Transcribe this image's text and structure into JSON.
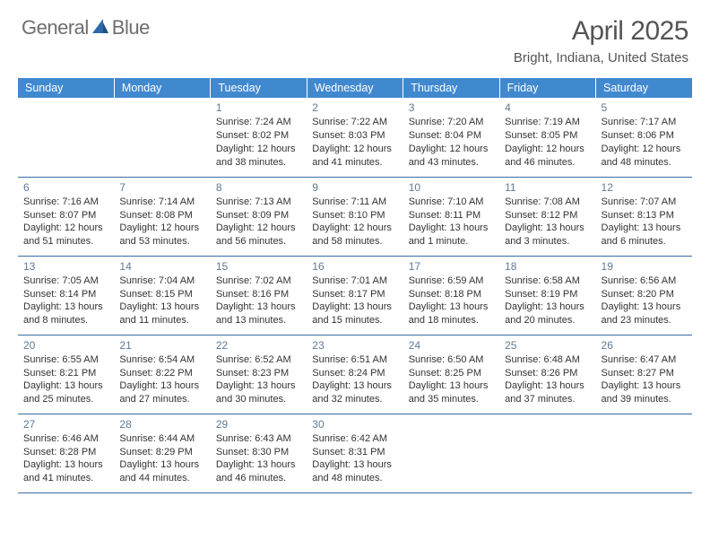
{
  "logo": {
    "text_general": "General",
    "text_blue": "Blue"
  },
  "month_title": "April 2025",
  "location": "Bright, Indiana, United States",
  "colors": {
    "header_bg": "#4189cf",
    "header_text": "#ffffff",
    "row_border": "#3a6da3",
    "daynum": "#5f7a94",
    "body_text": "#333333",
    "logo_gray": "#6e6e6e",
    "logo_blue": "#3b7fc4",
    "background": "#ffffff"
  },
  "day_headers": [
    "Sunday",
    "Monday",
    "Tuesday",
    "Wednesday",
    "Thursday",
    "Friday",
    "Saturday"
  ],
  "weeks": [
    [
      null,
      null,
      {
        "n": "1",
        "sunrise": "Sunrise: 7:24 AM",
        "sunset": "Sunset: 8:02 PM",
        "daylight": "Daylight: 12 hours and 38 minutes."
      },
      {
        "n": "2",
        "sunrise": "Sunrise: 7:22 AM",
        "sunset": "Sunset: 8:03 PM",
        "daylight": "Daylight: 12 hours and 41 minutes."
      },
      {
        "n": "3",
        "sunrise": "Sunrise: 7:20 AM",
        "sunset": "Sunset: 8:04 PM",
        "daylight": "Daylight: 12 hours and 43 minutes."
      },
      {
        "n": "4",
        "sunrise": "Sunrise: 7:19 AM",
        "sunset": "Sunset: 8:05 PM",
        "daylight": "Daylight: 12 hours and 46 minutes."
      },
      {
        "n": "5",
        "sunrise": "Sunrise: 7:17 AM",
        "sunset": "Sunset: 8:06 PM",
        "daylight": "Daylight: 12 hours and 48 minutes."
      }
    ],
    [
      {
        "n": "6",
        "sunrise": "Sunrise: 7:16 AM",
        "sunset": "Sunset: 8:07 PM",
        "daylight": "Daylight: 12 hours and 51 minutes."
      },
      {
        "n": "7",
        "sunrise": "Sunrise: 7:14 AM",
        "sunset": "Sunset: 8:08 PM",
        "daylight": "Daylight: 12 hours and 53 minutes."
      },
      {
        "n": "8",
        "sunrise": "Sunrise: 7:13 AM",
        "sunset": "Sunset: 8:09 PM",
        "daylight": "Daylight: 12 hours and 56 minutes."
      },
      {
        "n": "9",
        "sunrise": "Sunrise: 7:11 AM",
        "sunset": "Sunset: 8:10 PM",
        "daylight": "Daylight: 12 hours and 58 minutes."
      },
      {
        "n": "10",
        "sunrise": "Sunrise: 7:10 AM",
        "sunset": "Sunset: 8:11 PM",
        "daylight": "Daylight: 13 hours and 1 minute."
      },
      {
        "n": "11",
        "sunrise": "Sunrise: 7:08 AM",
        "sunset": "Sunset: 8:12 PM",
        "daylight": "Daylight: 13 hours and 3 minutes."
      },
      {
        "n": "12",
        "sunrise": "Sunrise: 7:07 AM",
        "sunset": "Sunset: 8:13 PM",
        "daylight": "Daylight: 13 hours and 6 minutes."
      }
    ],
    [
      {
        "n": "13",
        "sunrise": "Sunrise: 7:05 AM",
        "sunset": "Sunset: 8:14 PM",
        "daylight": "Daylight: 13 hours and 8 minutes."
      },
      {
        "n": "14",
        "sunrise": "Sunrise: 7:04 AM",
        "sunset": "Sunset: 8:15 PM",
        "daylight": "Daylight: 13 hours and 11 minutes."
      },
      {
        "n": "15",
        "sunrise": "Sunrise: 7:02 AM",
        "sunset": "Sunset: 8:16 PM",
        "daylight": "Daylight: 13 hours and 13 minutes."
      },
      {
        "n": "16",
        "sunrise": "Sunrise: 7:01 AM",
        "sunset": "Sunset: 8:17 PM",
        "daylight": "Daylight: 13 hours and 15 minutes."
      },
      {
        "n": "17",
        "sunrise": "Sunrise: 6:59 AM",
        "sunset": "Sunset: 8:18 PM",
        "daylight": "Daylight: 13 hours and 18 minutes."
      },
      {
        "n": "18",
        "sunrise": "Sunrise: 6:58 AM",
        "sunset": "Sunset: 8:19 PM",
        "daylight": "Daylight: 13 hours and 20 minutes."
      },
      {
        "n": "19",
        "sunrise": "Sunrise: 6:56 AM",
        "sunset": "Sunset: 8:20 PM",
        "daylight": "Daylight: 13 hours and 23 minutes."
      }
    ],
    [
      {
        "n": "20",
        "sunrise": "Sunrise: 6:55 AM",
        "sunset": "Sunset: 8:21 PM",
        "daylight": "Daylight: 13 hours and 25 minutes."
      },
      {
        "n": "21",
        "sunrise": "Sunrise: 6:54 AM",
        "sunset": "Sunset: 8:22 PM",
        "daylight": "Daylight: 13 hours and 27 minutes."
      },
      {
        "n": "22",
        "sunrise": "Sunrise: 6:52 AM",
        "sunset": "Sunset: 8:23 PM",
        "daylight": "Daylight: 13 hours and 30 minutes."
      },
      {
        "n": "23",
        "sunrise": "Sunrise: 6:51 AM",
        "sunset": "Sunset: 8:24 PM",
        "daylight": "Daylight: 13 hours and 32 minutes."
      },
      {
        "n": "24",
        "sunrise": "Sunrise: 6:50 AM",
        "sunset": "Sunset: 8:25 PM",
        "daylight": "Daylight: 13 hours and 35 minutes."
      },
      {
        "n": "25",
        "sunrise": "Sunrise: 6:48 AM",
        "sunset": "Sunset: 8:26 PM",
        "daylight": "Daylight: 13 hours and 37 minutes."
      },
      {
        "n": "26",
        "sunrise": "Sunrise: 6:47 AM",
        "sunset": "Sunset: 8:27 PM",
        "daylight": "Daylight: 13 hours and 39 minutes."
      }
    ],
    [
      {
        "n": "27",
        "sunrise": "Sunrise: 6:46 AM",
        "sunset": "Sunset: 8:28 PM",
        "daylight": "Daylight: 13 hours and 41 minutes."
      },
      {
        "n": "28",
        "sunrise": "Sunrise: 6:44 AM",
        "sunset": "Sunset: 8:29 PM",
        "daylight": "Daylight: 13 hours and 44 minutes."
      },
      {
        "n": "29",
        "sunrise": "Sunrise: 6:43 AM",
        "sunset": "Sunset: 8:30 PM",
        "daylight": "Daylight: 13 hours and 46 minutes."
      },
      {
        "n": "30",
        "sunrise": "Sunrise: 6:42 AM",
        "sunset": "Sunset: 8:31 PM",
        "daylight": "Daylight: 13 hours and 48 minutes."
      },
      null,
      null,
      null
    ]
  ]
}
